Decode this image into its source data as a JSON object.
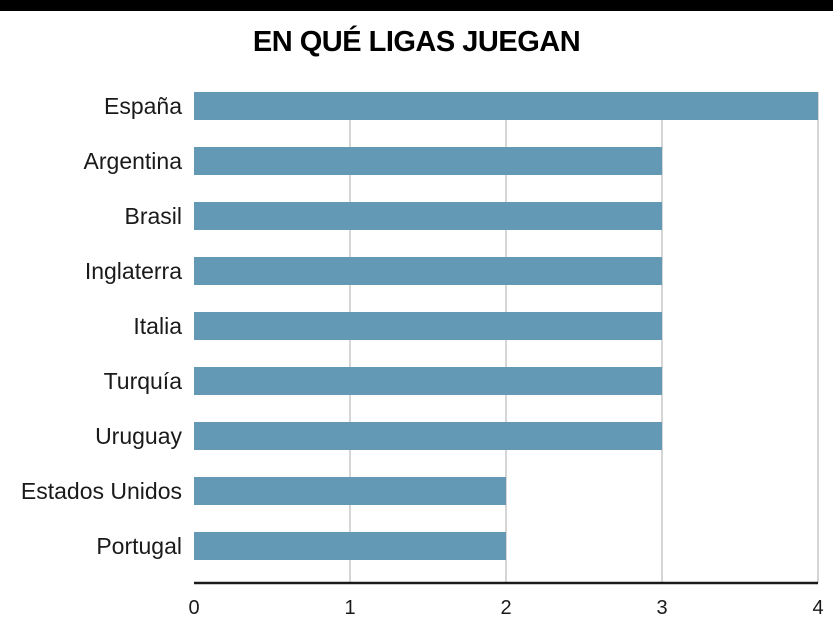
{
  "chart_data": {
    "type": "bar",
    "orientation": "horizontal",
    "title": "EN QUÉ LIGAS JUEGAN",
    "categories": [
      "España",
      "Argentina",
      "Brasil",
      "Inglaterra",
      "Italia",
      "Turquía",
      "Uruguay",
      "Estados Unidos",
      "Portugal"
    ],
    "values": [
      4,
      3,
      3,
      3,
      3,
      3,
      3,
      2,
      2
    ],
    "xlim": [
      0,
      4
    ],
    "xticks": [
      "0",
      "1",
      "2",
      "3",
      "4"
    ],
    "xlabel": "",
    "ylabel": "",
    "grid": "vertical",
    "colors": {
      "bar": "#6399b4",
      "grid": "#c8c8c8",
      "axis": "#1a1a1a",
      "top_rule": "#000000"
    }
  }
}
